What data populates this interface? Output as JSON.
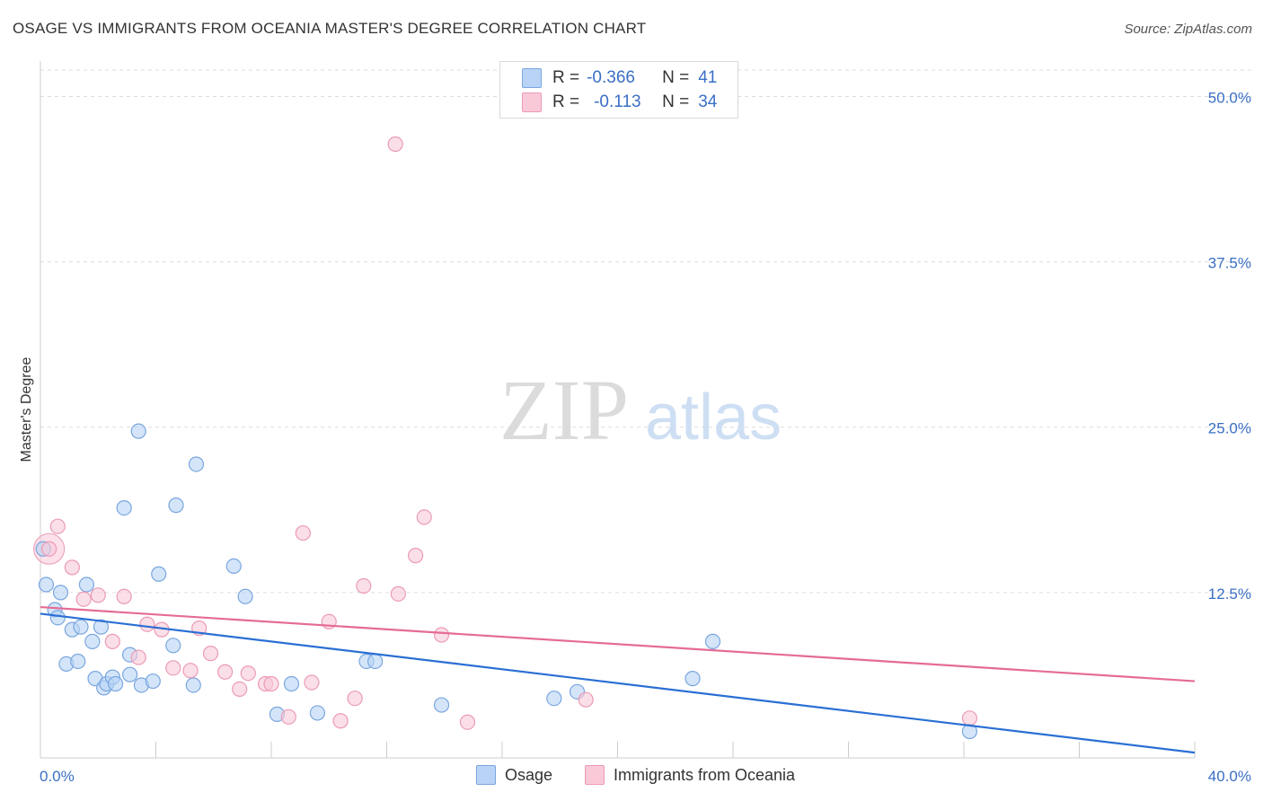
{
  "title": "OSAGE VS IMMIGRANTS FROM OCEANIA MASTER'S DEGREE CORRELATION CHART",
  "source": "Source: ZipAtlas.com",
  "watermark": {
    "zip": "ZIP",
    "atlas": "atlas"
  },
  "legend": {
    "rows": [
      {
        "r_label": "R =",
        "r_value": "-0.366",
        "n_label": "N =",
        "n_value": "41"
      },
      {
        "r_label": "R =",
        "r_value": "-0.113",
        "n_label": "N =",
        "n_value": "34"
      }
    ]
  },
  "colors": {
    "osage_fill": "#b8d3f5",
    "osage_stroke": "#7aa6df",
    "osage_line": "#2a6fd4",
    "oceania_fill": "#f9c9d8",
    "oceania_stroke": "#eb9ab5",
    "oceania_line": "#e56b95",
    "tick_label": "#3a6fc4",
    "grid": "#dddddd"
  },
  "chart_data": {
    "type": "scatter",
    "title": "OSAGE VS IMMIGRANTS FROM OCEANIA MASTER'S DEGREE CORRELATION CHART",
    "xlabel": "",
    "ylabel": "Master's Degree",
    "xlim": [
      0,
      40
    ],
    "ylim": [
      0,
      52
    ],
    "x_tick_labels": [
      "0.0%",
      "40.0%"
    ],
    "y_ticks": [
      12.5,
      25.0,
      37.5,
      50.0
    ],
    "y_tick_labels": [
      "12.5%",
      "25.0%",
      "37.5%",
      "50.0%"
    ],
    "grid": true,
    "series": [
      {
        "name": "Osage",
        "r": -0.366,
        "n": 41,
        "trend": {
          "x": [
            0,
            40
          ],
          "y": [
            10.9,
            0.4
          ]
        },
        "points": [
          [
            0.1,
            15.8
          ],
          [
            0.2,
            13.1
          ],
          [
            0.5,
            11.2
          ],
          [
            0.6,
            10.6
          ],
          [
            0.7,
            12.5
          ],
          [
            0.9,
            7.1
          ],
          [
            1.1,
            9.7
          ],
          [
            1.3,
            7.3
          ],
          [
            1.4,
            9.9
          ],
          [
            1.6,
            13.1
          ],
          [
            1.8,
            8.8
          ],
          [
            1.9,
            6.0
          ],
          [
            2.1,
            9.9
          ],
          [
            2.2,
            5.3
          ],
          [
            2.3,
            5.6
          ],
          [
            2.5,
            6.1
          ],
          [
            2.6,
            5.6
          ],
          [
            2.9,
            18.9
          ],
          [
            3.1,
            6.3
          ],
          [
            3.1,
            7.8
          ],
          [
            3.4,
            24.7
          ],
          [
            3.5,
            5.5
          ],
          [
            3.9,
            5.8
          ],
          [
            4.1,
            13.9
          ],
          [
            4.6,
            8.5
          ],
          [
            4.7,
            19.1
          ],
          [
            5.3,
            5.5
          ],
          [
            5.4,
            22.2
          ],
          [
            6.7,
            14.5
          ],
          [
            7.1,
            12.2
          ],
          [
            8.2,
            3.3
          ],
          [
            8.7,
            5.6
          ],
          [
            9.6,
            3.4
          ],
          [
            11.3,
            7.3
          ],
          [
            11.6,
            7.3
          ],
          [
            13.9,
            4.0
          ],
          [
            17.8,
            4.5
          ],
          [
            18.6,
            5.0
          ],
          [
            22.6,
            6.0
          ],
          [
            23.3,
            8.8
          ],
          [
            32.2,
            2.0
          ]
        ]
      },
      {
        "name": "Immigrants from Oceania",
        "r": -0.113,
        "n": 34,
        "trend": {
          "x": [
            0,
            40
          ],
          "y": [
            11.4,
            5.8
          ]
        },
        "points": [
          [
            0.3,
            15.8
          ],
          [
            0.6,
            17.5
          ],
          [
            1.1,
            14.4
          ],
          [
            1.5,
            12.0
          ],
          [
            2.0,
            12.3
          ],
          [
            2.5,
            8.8
          ],
          [
            2.9,
            12.2
          ],
          [
            3.4,
            7.6
          ],
          [
            3.7,
            10.1
          ],
          [
            4.2,
            9.7
          ],
          [
            4.6,
            6.8
          ],
          [
            5.2,
            6.6
          ],
          [
            5.5,
            9.8
          ],
          [
            5.9,
            7.9
          ],
          [
            6.4,
            6.5
          ],
          [
            6.9,
            5.2
          ],
          [
            7.2,
            6.4
          ],
          [
            7.8,
            5.6
          ],
          [
            8.0,
            5.6
          ],
          [
            8.6,
            3.1
          ],
          [
            9.1,
            17.0
          ],
          [
            9.4,
            5.7
          ],
          [
            10.0,
            10.3
          ],
          [
            10.4,
            2.8
          ],
          [
            10.9,
            4.5
          ],
          [
            11.2,
            13.0
          ],
          [
            12.3,
            46.4
          ],
          [
            12.4,
            12.4
          ],
          [
            13.0,
            15.3
          ],
          [
            13.3,
            18.2
          ],
          [
            13.9,
            9.3
          ],
          [
            14.8,
            2.7
          ],
          [
            18.9,
            4.4
          ],
          [
            32.2,
            3.0
          ]
        ]
      }
    ]
  },
  "bottom_legend": [
    {
      "label": "Osage"
    },
    {
      "label": "Immigrants from Oceania"
    }
  ]
}
